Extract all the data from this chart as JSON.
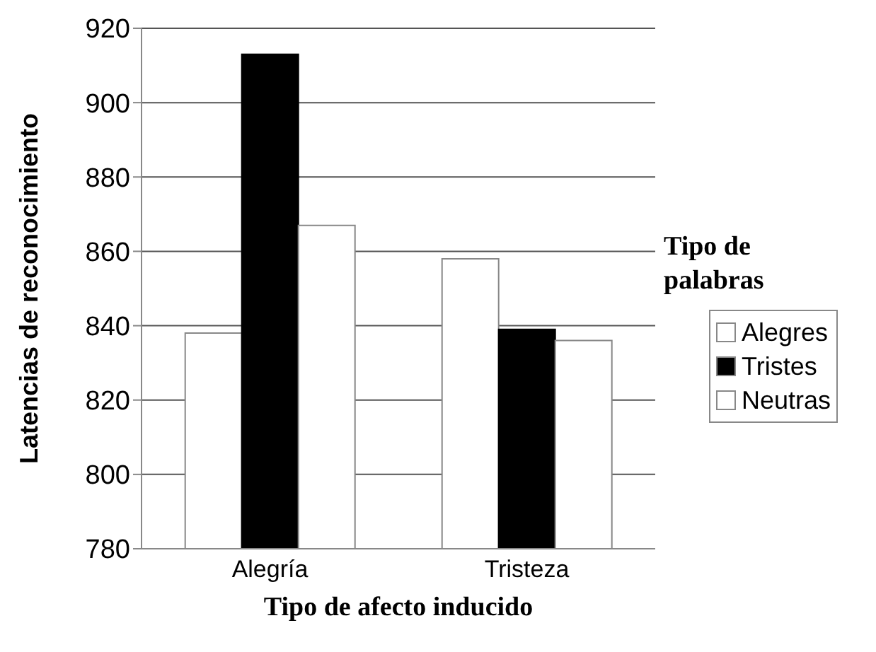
{
  "chart_data": {
    "type": "bar",
    "xlabel": "Tipo de afecto inducido",
    "ylabel": "Latencias de reconocimiento",
    "legend_title": "Tipo de palabras",
    "categories": [
      "Alegría",
      "Tristeza"
    ],
    "series": [
      {
        "name": "Alegres",
        "color": "#ffffff",
        "values": [
          838,
          858
        ]
      },
      {
        "name": "Tristes",
        "color": "#000000",
        "values": [
          913,
          839
        ]
      },
      {
        "name": "Neutras",
        "color": "#ffffff",
        "values": [
          867,
          836
        ]
      }
    ],
    "ylim": [
      780,
      920
    ],
    "yticks": [
      780,
      800,
      820,
      840,
      860,
      880,
      900,
      920
    ],
    "grid": "y",
    "legend": "right"
  }
}
